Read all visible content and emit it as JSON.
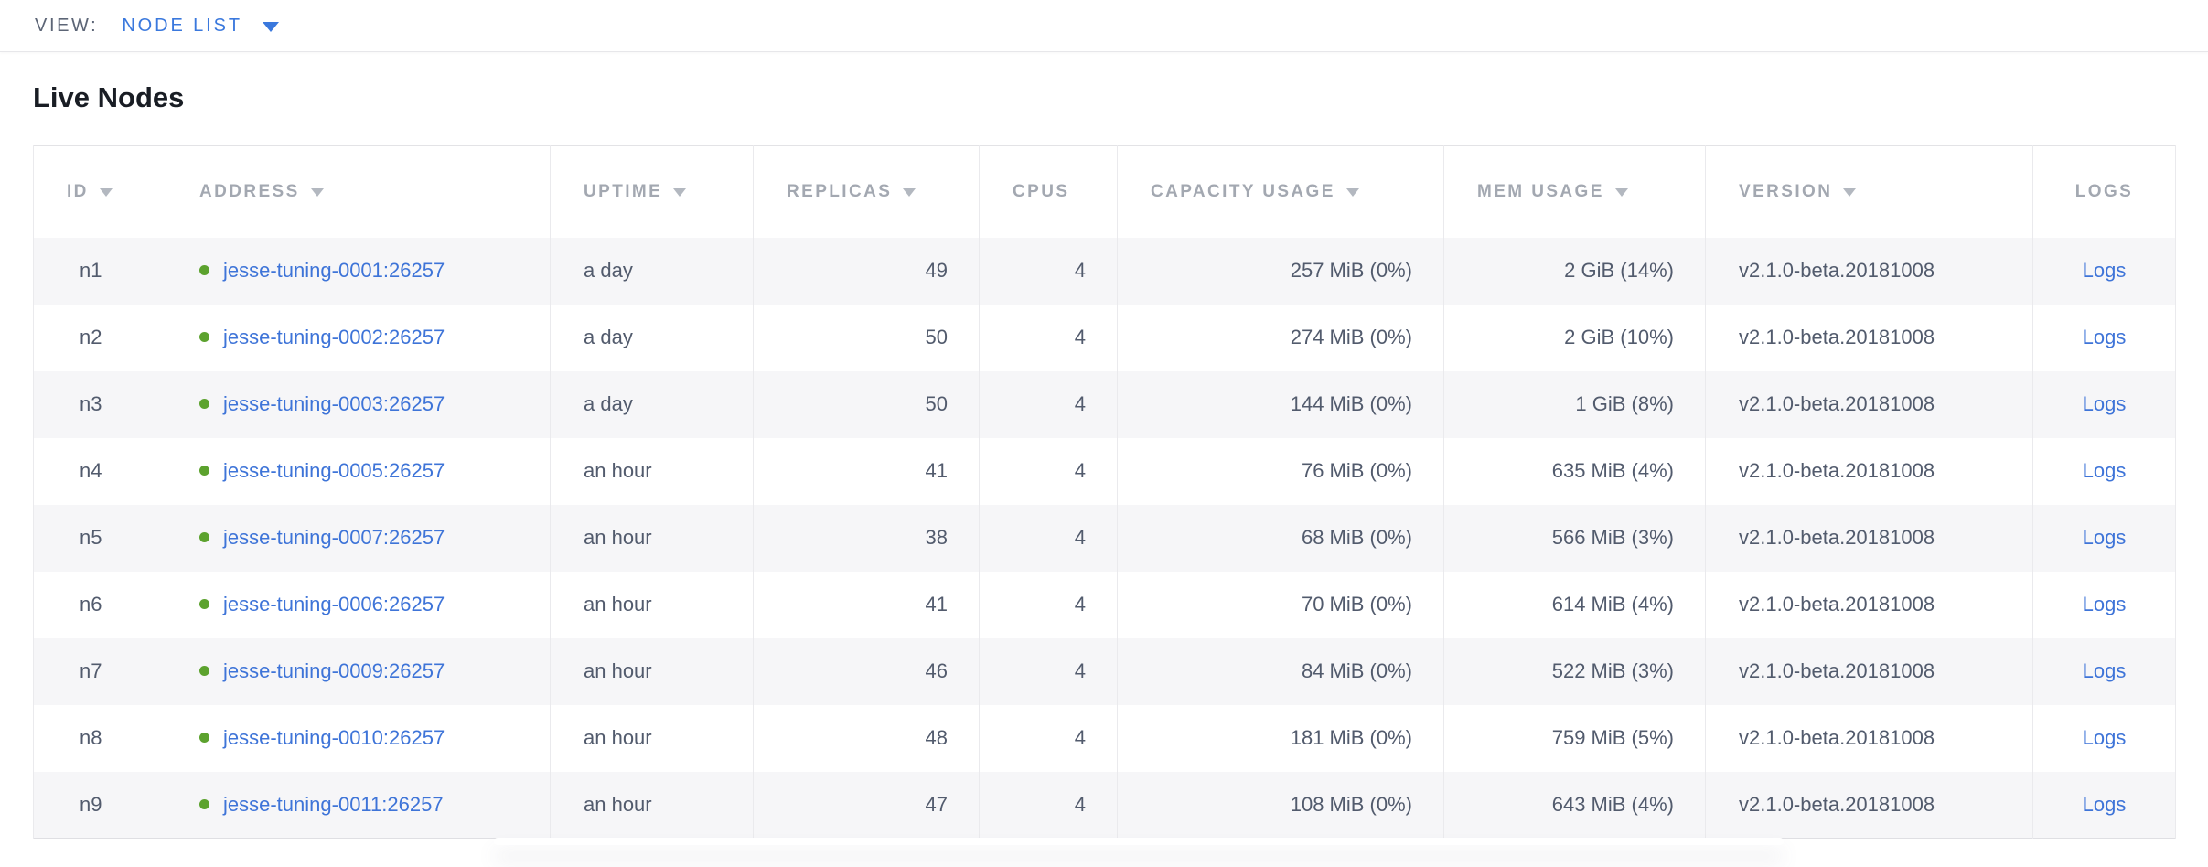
{
  "topbar": {
    "view_label": "VIEW:",
    "view_value": "NODE LIST"
  },
  "page": {
    "title": "Live Nodes"
  },
  "colors": {
    "link_blue": "#3e74d8",
    "dropdown_blue": "#3a78dd",
    "status_green": "#5ca22e",
    "header_gray": "#a3a8b1",
    "body_text": "#525b6d",
    "stripe_gray": "#f6f6f8"
  },
  "table": {
    "columns": [
      {
        "key": "id",
        "label": "ID",
        "sortable": true,
        "align": "left"
      },
      {
        "key": "address",
        "label": "ADDRESS",
        "sortable": true,
        "align": "left"
      },
      {
        "key": "uptime",
        "label": "UPTIME",
        "sortable": true,
        "align": "left"
      },
      {
        "key": "replicas",
        "label": "REPLICAS",
        "sortable": true,
        "align": "right"
      },
      {
        "key": "cpus",
        "label": "CPUS",
        "sortable": false,
        "align": "right"
      },
      {
        "key": "capacity",
        "label": "CAPACITY USAGE",
        "sortable": true,
        "align": "right"
      },
      {
        "key": "mem",
        "label": "MEM USAGE",
        "sortable": true,
        "align": "right"
      },
      {
        "key": "version",
        "label": "VERSION",
        "sortable": true,
        "align": "left"
      },
      {
        "key": "logs",
        "label": "LOGS",
        "sortable": false,
        "align": "center"
      }
    ],
    "rows": [
      {
        "id": "n1",
        "status": "live",
        "address": "jesse-tuning-0001:26257",
        "uptime": "a day",
        "replicas": "49",
        "cpus": "4",
        "capacity": "257 MiB (0%)",
        "mem": "2 GiB (14%)",
        "version": "v2.1.0-beta.20181008",
        "logs": "Logs"
      },
      {
        "id": "n2",
        "status": "live",
        "address": "jesse-tuning-0002:26257",
        "uptime": "a day",
        "replicas": "50",
        "cpus": "4",
        "capacity": "274 MiB (0%)",
        "mem": "2 GiB (10%)",
        "version": "v2.1.0-beta.20181008",
        "logs": "Logs"
      },
      {
        "id": "n3",
        "status": "live",
        "address": "jesse-tuning-0003:26257",
        "uptime": "a day",
        "replicas": "50",
        "cpus": "4",
        "capacity": "144 MiB (0%)",
        "mem": "1 GiB (8%)",
        "version": "v2.1.0-beta.20181008",
        "logs": "Logs"
      },
      {
        "id": "n4",
        "status": "live",
        "address": "jesse-tuning-0005:26257",
        "uptime": "an hour",
        "replicas": "41",
        "cpus": "4",
        "capacity": "76 MiB (0%)",
        "mem": "635 MiB (4%)",
        "version": "v2.1.0-beta.20181008",
        "logs": "Logs"
      },
      {
        "id": "n5",
        "status": "live",
        "address": "jesse-tuning-0007:26257",
        "uptime": "an hour",
        "replicas": "38",
        "cpus": "4",
        "capacity": "68 MiB (0%)",
        "mem": "566 MiB (3%)",
        "version": "v2.1.0-beta.20181008",
        "logs": "Logs"
      },
      {
        "id": "n6",
        "status": "live",
        "address": "jesse-tuning-0006:26257",
        "uptime": "an hour",
        "replicas": "41",
        "cpus": "4",
        "capacity": "70 MiB (0%)",
        "mem": "614 MiB (4%)",
        "version": "v2.1.0-beta.20181008",
        "logs": "Logs"
      },
      {
        "id": "n7",
        "status": "live",
        "address": "jesse-tuning-0009:26257",
        "uptime": "an hour",
        "replicas": "46",
        "cpus": "4",
        "capacity": "84 MiB (0%)",
        "mem": "522 MiB (3%)",
        "version": "v2.1.0-beta.20181008",
        "logs": "Logs"
      },
      {
        "id": "n8",
        "status": "live",
        "address": "jesse-tuning-0010:26257",
        "uptime": "an hour",
        "replicas": "48",
        "cpus": "4",
        "capacity": "181 MiB (0%)",
        "mem": "759 MiB (5%)",
        "version": "v2.1.0-beta.20181008",
        "logs": "Logs"
      },
      {
        "id": "n9",
        "status": "live",
        "address": "jesse-tuning-0011:26257",
        "uptime": "an hour",
        "replicas": "47",
        "cpus": "4",
        "capacity": "108 MiB (0%)",
        "mem": "643 MiB (4%)",
        "version": "v2.1.0-beta.20181008",
        "logs": "Logs"
      }
    ]
  }
}
